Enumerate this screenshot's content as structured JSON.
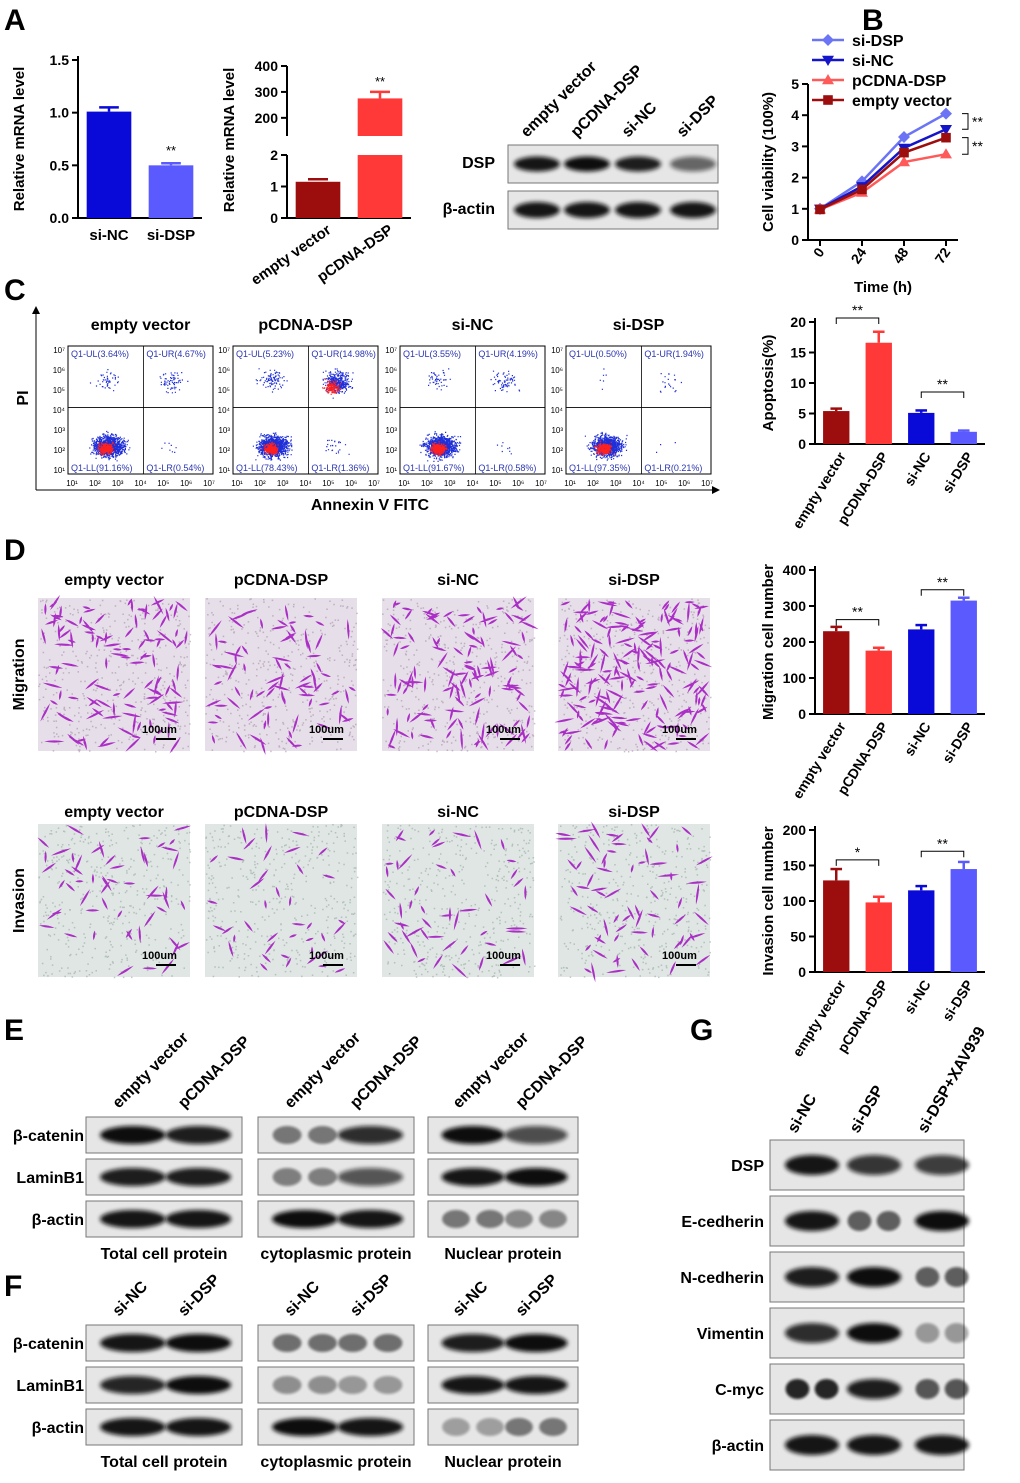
{
  "panels": {
    "A": "A",
    "B": "B",
    "C": "C",
    "D": "D",
    "E": "E",
    "F": "F",
    "G": "G"
  },
  "chart_data": [
    {
      "id": "A1",
      "type": "bar",
      "categories": [
        "si-NC",
        "si-DSP"
      ],
      "values": [
        1.01,
        0.5
      ],
      "errors": [
        0.04,
        0.02
      ],
      "colors": [
        "#0a0ad8",
        "#5a5aff"
      ],
      "ylabel": "Relative mRNA level",
      "ylim": [
        0,
        1.5
      ],
      "yticks": [
        "0.0",
        "0.5",
        "1.0",
        "1.5"
      ],
      "sig": [
        "",
        "**"
      ]
    },
    {
      "id": "A2",
      "type": "bar",
      "categories": [
        "empty vector",
        "pCDNA-DSP"
      ],
      "values": [
        1.15,
        275
      ],
      "errors": [
        0.08,
        25
      ],
      "colors": [
        "#9c0e0e",
        "#ff3838"
      ],
      "ylabel": "Relative mRNA level",
      "yticks_low": [
        "0",
        "1",
        "2"
      ],
      "yticks_high": [
        "200",
        "300",
        "400"
      ],
      "sig": [
        "",
        "**"
      ]
    },
    {
      "id": "B",
      "type": "line",
      "x": [
        0,
        24,
        48,
        72
      ],
      "xticks": [
        "0",
        "24",
        "48",
        "72"
      ],
      "xlabel": "Time (h)",
      "ylabel": "Cell viability (100%)",
      "ylim": [
        0,
        5
      ],
      "yticks": [
        "0",
        "1",
        "2",
        "3",
        "4",
        "5"
      ],
      "series": [
        {
          "name": "si-DSP",
          "color": "#6b74f5",
          "marker": "diamond",
          "values": [
            1.0,
            1.88,
            3.3,
            4.05
          ],
          "errors": [
            0.05,
            0.08,
            0.12,
            0.12
          ]
        },
        {
          "name": "si-NC",
          "color": "#1414c8",
          "marker": "tri-down",
          "values": [
            1.0,
            1.72,
            2.95,
            3.55
          ],
          "errors": [
            0.05,
            0.07,
            0.1,
            0.1
          ]
        },
        {
          "name": "pCDNA-DSP",
          "color": "#ff5a5a",
          "marker": "tri-up",
          "values": [
            0.98,
            1.52,
            2.5,
            2.75
          ],
          "errors": [
            0.05,
            0.06,
            0.1,
            0.1
          ]
        },
        {
          "name": "empty vector",
          "color": "#9c0e0e",
          "marker": "square",
          "values": [
            0.98,
            1.62,
            2.8,
            3.28
          ],
          "errors": [
            0.05,
            0.06,
            0.1,
            0.1
          ]
        }
      ],
      "sig": [
        "**",
        "**"
      ]
    },
    {
      "id": "C-bar",
      "type": "bar",
      "categories": [
        "empty vector",
        "pCDNA-DSP",
        "si-NC",
        "si-DSP"
      ],
      "values": [
        5.4,
        16.6,
        5.1,
        2.0
      ],
      "errors": [
        0.4,
        1.8,
        0.4,
        0.2
      ],
      "colors": [
        "#9c0e0e",
        "#ff3838",
        "#0a0ad8",
        "#5a5aff"
      ],
      "ylabel": "Apoptosis(%)",
      "ylim": [
        0,
        20
      ],
      "yticks": [
        "0",
        "5",
        "10",
        "15",
        "20"
      ],
      "sig": [
        "**",
        "**"
      ]
    },
    {
      "id": "D-migration",
      "type": "bar",
      "categories": [
        "empty vector",
        "pCDNA-DSP",
        "si-NC",
        "si-DSP"
      ],
      "values": [
        230,
        176,
        235,
        315
      ],
      "errors": [
        12,
        8,
        12,
        8
      ],
      "colors": [
        "#9c0e0e",
        "#ff3838",
        "#0a0ad8",
        "#5a5aff"
      ],
      "ylabel": "Migration cell number",
      "ylim": [
        0,
        400
      ],
      "yticks": [
        "0",
        "100",
        "200",
        "300",
        "400"
      ],
      "sig": [
        "**",
        "**"
      ]
    },
    {
      "id": "D-invasion",
      "type": "bar",
      "categories": [
        "empty vector",
        "pCDNA-DSP",
        "si-NC",
        "si-DSP"
      ],
      "values": [
        129,
        98,
        115,
        145
      ],
      "errors": [
        16,
        8,
        6,
        10
      ],
      "colors": [
        "#9c0e0e",
        "#ff3838",
        "#0a0ad8",
        "#5a5aff"
      ],
      "ylabel": "Invasion cell number",
      "ylim": [
        0,
        200
      ],
      "yticks": [
        "0",
        "50",
        "100",
        "150",
        "200"
      ],
      "sig": [
        "*",
        "**"
      ]
    }
  ],
  "blotA": {
    "lanes": [
      "empty vector",
      "pCDNA-DSP",
      "si-NC",
      "si-DSP"
    ],
    "rows": [
      "DSP",
      "β-actin"
    ]
  },
  "flow": {
    "groups": [
      "empty vector",
      "pCDNA-DSP",
      "si-NC",
      "si-DSP"
    ],
    "ylabel": "PI",
    "xlabel": "Annexin V FITC",
    "quadrants": [
      {
        "ul": "Q1-UL(3.64%)",
        "ur": "Q1-UR(4.67%)",
        "ll": "Q1-LL(91.16%)",
        "lr": "Q1-LR(0.54%)"
      },
      {
        "ul": "Q1-UL(5.23%)",
        "ur": "Q1-UR(14.98%)",
        "ll": "Q1-LL(78.43%)",
        "lr": "Q1-LR(1.36%)"
      },
      {
        "ul": "Q1-UL(3.55%)",
        "ur": "Q1-UR(4.19%)",
        "ll": "Q1-LL(91.67%)",
        "lr": "Q1-LR(0.58%)"
      },
      {
        "ul": "Q1-UL(0.50%)",
        "ur": "Q1-UR(1.94%)",
        "ll": "Q1-LL(97.35%)",
        "lr": "Q1-LR(0.21%)"
      }
    ],
    "xticks": [
      "10¹",
      "10²",
      "10³",
      "10⁴",
      "10⁵",
      "10⁶",
      "10⁷"
    ]
  },
  "transwell": {
    "groups": [
      "empty vector",
      "pCDNA-DSP",
      "si-NC",
      "si-DSP"
    ],
    "rows": [
      "Migration",
      "Invasion"
    ],
    "scale": "100um"
  },
  "blotE": {
    "lanes": [
      "empty vector",
      "pCDNA-DSP"
    ],
    "rows": [
      "β-catenin",
      "LaminB1",
      "β-actin"
    ],
    "captions": [
      "Total cell protein",
      "cytoplasmic protein",
      "Nuclear protein"
    ]
  },
  "blotF": {
    "lanes": [
      "si-NC",
      "si-DSP"
    ],
    "rows": [
      "β-catenin",
      "LaminB1",
      "β-actin"
    ],
    "captions": [
      "Total cell protein",
      "cytoplasmic protein",
      "Nuclear protein"
    ]
  },
  "blotG": {
    "lanes": [
      "si-NC",
      "si-DSP",
      "si-DSP+XAV939"
    ],
    "rows": [
      "DSP",
      "E-cedherin",
      "N-cedherin",
      "Vimentin",
      "C-myc",
      "β-actin"
    ]
  }
}
